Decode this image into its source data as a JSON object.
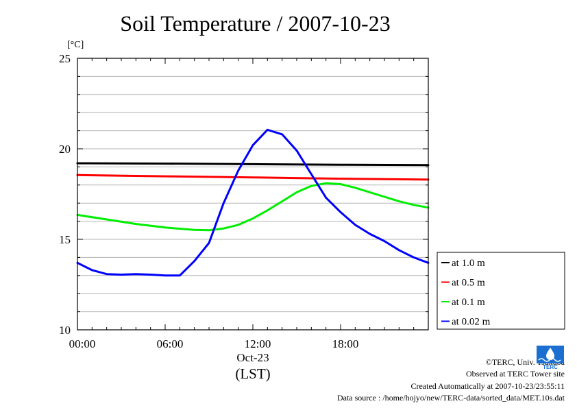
{
  "title": "Soil Temperature / 2007-10-23",
  "chart_data": {
    "type": "line",
    "title": "Soil Temperature / 2007-10-23",
    "ylabel": "[°C]",
    "xlabel": "(LST)",
    "x_date_label": "Oct-23",
    "xlim": [
      0,
      24
    ],
    "ylim": [
      10,
      25
    ],
    "yticks": [
      10,
      15,
      20,
      25
    ],
    "xticks": [
      {
        "value": 0,
        "label": "00:00"
      },
      {
        "value": 6,
        "label": "06:00"
      },
      {
        "value": 12,
        "label": "12:00"
      },
      {
        "value": 18,
        "label": "18:00"
      }
    ],
    "grid": true,
    "legend_position": "right",
    "series": [
      {
        "name": "at 1.0 m",
        "color": "#000000",
        "x": [
          0,
          6,
          12,
          18,
          24
        ],
        "y": [
          19.2,
          19.18,
          19.15,
          19.12,
          19.1
        ]
      },
      {
        "name": "at 0.5 m",
        "color": "#ff0000",
        "x": [
          0,
          6,
          12,
          18,
          24
        ],
        "y": [
          18.55,
          18.48,
          18.42,
          18.35,
          18.3
        ]
      },
      {
        "name": "at 0.1 m",
        "color": "#00ee00",
        "x": [
          0,
          2,
          4,
          6,
          8,
          9,
          10,
          11,
          12,
          13,
          14,
          15,
          16,
          17,
          18,
          19,
          20,
          21,
          22,
          23,
          24
        ],
        "y": [
          16.35,
          16.1,
          15.85,
          15.65,
          15.52,
          15.5,
          15.6,
          15.8,
          16.15,
          16.6,
          17.1,
          17.6,
          17.95,
          18.1,
          18.05,
          17.85,
          17.6,
          17.35,
          17.1,
          16.9,
          16.75
        ]
      },
      {
        "name": "at 0.02 m",
        "color": "#0000ff",
        "x": [
          0,
          1,
          2,
          3,
          4,
          5,
          6,
          7,
          8,
          9,
          10,
          11,
          12,
          13,
          14,
          15,
          16,
          17,
          18,
          19,
          20,
          21,
          22,
          23,
          24
        ],
        "y": [
          13.7,
          13.3,
          13.08,
          13.05,
          13.08,
          13.05,
          13.0,
          13.0,
          13.8,
          14.8,
          17.0,
          18.8,
          20.2,
          21.05,
          20.8,
          19.9,
          18.6,
          17.3,
          16.5,
          15.8,
          15.3,
          14.9,
          14.4,
          14.0,
          13.7
        ]
      }
    ]
  },
  "footer": {
    "copyright": "©TERC, Univ. Tsukuba",
    "observed": "Observed at TERC Tower site",
    "created": "Created Automatically at 2007-10-23/23:55:11",
    "source": "Data source : /home/hojyo/new/TERC-data/sorted_data/MET.10s.dat"
  },
  "logo": {
    "text": "TERC",
    "color": "#1a6fd0"
  }
}
